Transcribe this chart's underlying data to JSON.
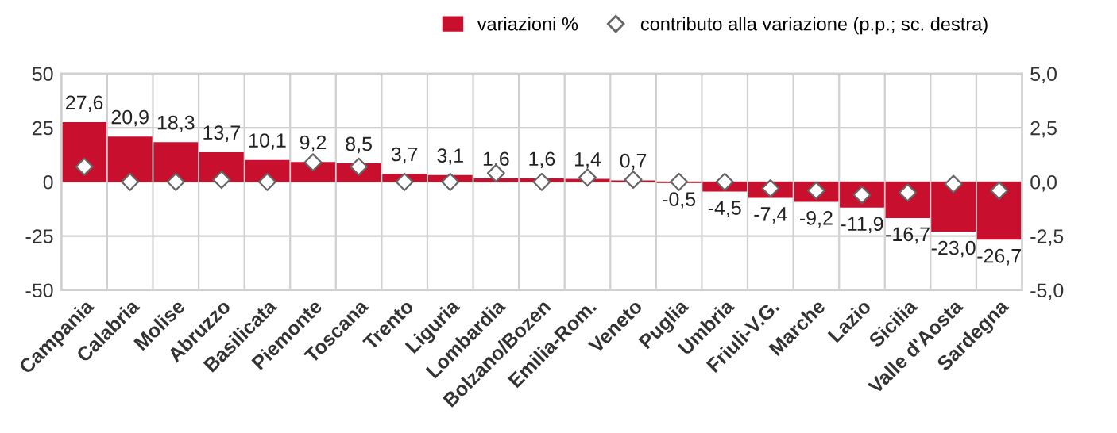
{
  "chart_data": {
    "type": "bar",
    "categories": [
      "Campania",
      "Calabria",
      "Molise",
      "Abruzzo",
      "Basilicata",
      "Piemonte",
      "Toscana",
      "Trento",
      "Liguria",
      "Lombardia",
      "Bolzano/Bozen",
      "Emilia-Rom.",
      "Veneto",
      "Puglia",
      "Umbria",
      "Friuli-V.G.",
      "Marche",
      "Lazio",
      "Sicilia",
      "Valle d'Aosta",
      "Sardegna"
    ],
    "series": [
      {
        "name": "variazioni %",
        "color": "#c8102e",
        "values": [
          27.6,
          20.9,
          18.3,
          13.7,
          10.1,
          9.2,
          8.5,
          3.7,
          3.1,
          1.6,
          1.6,
          1.4,
          0.7,
          -0.5,
          -4.5,
          -7.4,
          -9.2,
          -11.9,
          -16.7,
          -23.0,
          -26.7
        ],
        "value_labels": [
          "27,6",
          "20,9",
          "18,3",
          "13,7",
          "10,1",
          "9,2",
          "8,5",
          "3,7",
          "3,1",
          "1,6",
          "1,6",
          "1,4",
          "0,7",
          "-0,5",
          "-4,5",
          "-7,4",
          "-9,2",
          "-11,9",
          "-16,7",
          "-23,0",
          "-26,7"
        ]
      },
      {
        "name": "contributo alla variazione (p.p.; sc. destra)",
        "type": "scatter",
        "axis": "y2",
        "marker": "diamond",
        "color": "#ffffff",
        "values": [
          0.7,
          0.0,
          0.0,
          0.1,
          0.0,
          0.9,
          0.7,
          0.0,
          0.0,
          0.4,
          0.0,
          0.2,
          0.1,
          0.0,
          0.0,
          -0.3,
          -0.4,
          -0.6,
          -0.5,
          -0.1,
          -0.4
        ]
      }
    ],
    "ylim": [
      -50,
      50
    ],
    "yticks": [
      -50,
      -25,
      0,
      25,
      50
    ],
    "y2lim": [
      -5,
      5
    ],
    "y2ticks": [
      {
        "value": -5,
        "label": "-5,0"
      },
      {
        "value": -2.5,
        "label": "-2,5"
      },
      {
        "value": 0,
        "label": "0,0"
      },
      {
        "value": 2.5,
        "label": "2,5"
      },
      {
        "value": 5,
        "label": "5,0"
      }
    ],
    "grid": true,
    "legend": "top right"
  }
}
